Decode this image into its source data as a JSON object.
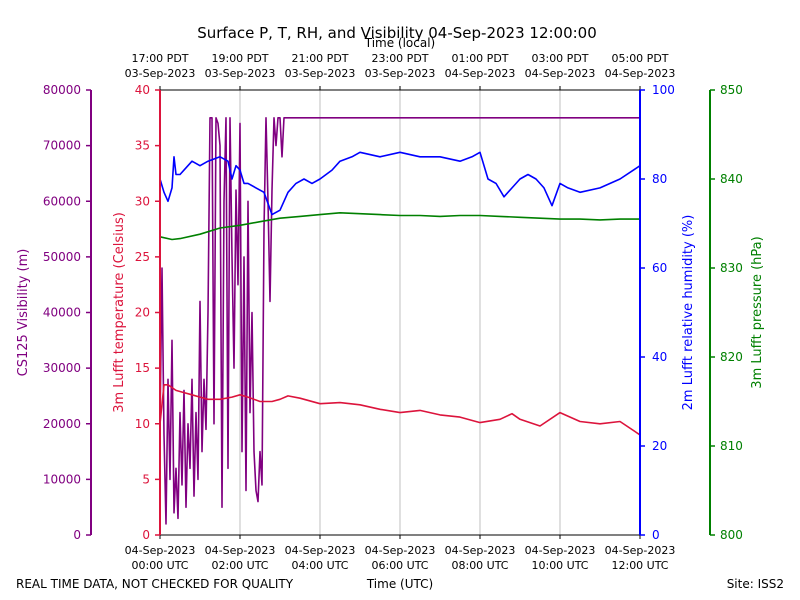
{
  "chart_data": {
    "type": "line",
    "title": "Surface P, T, RH, and Visibility 04-Sep-2023 12:00:00",
    "xlabel_bottom": "Time (UTC)",
    "xlabel_top": "Time (local)",
    "footer_left": "REAL TIME DATA, NOT CHECKED FOR QUALITY",
    "footer_right": "Site: ISS2",
    "x_range_hours_utc": [
      0,
      12
    ],
    "x_bottom_ticks": [
      {
        "h": 0,
        "l1": "04-Sep-2023",
        "l2": "00:00 UTC"
      },
      {
        "h": 2,
        "l1": "04-Sep-2023",
        "l2": "02:00 UTC"
      },
      {
        "h": 4,
        "l1": "04-Sep-2023",
        "l2": "04:00 UTC"
      },
      {
        "h": 6,
        "l1": "04-Sep-2023",
        "l2": "06:00 UTC"
      },
      {
        "h": 8,
        "l1": "04-Sep-2023",
        "l2": "08:00 UTC"
      },
      {
        "h": 10,
        "l1": "04-Sep-2023",
        "l2": "10:00 UTC"
      },
      {
        "h": 12,
        "l1": "04-Sep-2023",
        "l2": "12:00 UTC"
      }
    ],
    "x_top_ticks": [
      {
        "h": 0,
        "l1": "17:00 PDT",
        "l2": "03-Sep-2023"
      },
      {
        "h": 2,
        "l1": "19:00 PDT",
        "l2": "03-Sep-2023"
      },
      {
        "h": 4,
        "l1": "21:00 PDT",
        "l2": "03-Sep-2023"
      },
      {
        "h": 6,
        "l1": "23:00 PDT",
        "l2": "03-Sep-2023"
      },
      {
        "h": 8,
        "l1": "01:00 PDT",
        "l2": "04-Sep-2023"
      },
      {
        "h": 10,
        "l1": "03:00 PDT",
        "l2": "04-Sep-2023"
      },
      {
        "h": 12,
        "l1": "05:00 PDT",
        "l2": "04-Sep-2023"
      }
    ],
    "grid": "vertical",
    "axes": {
      "visibility": {
        "label": "CS125 Visibility (m)",
        "color": "#800080",
        "min": 0,
        "max": 80000,
        "ticks": [
          0,
          10000,
          20000,
          30000,
          40000,
          50000,
          60000,
          70000,
          80000
        ]
      },
      "temperature": {
        "label": "3m Lufft temperature (Celsius)",
        "color": "#dc143c",
        "min": 0,
        "max": 40,
        "ticks": [
          0,
          5,
          10,
          15,
          20,
          25,
          30,
          35,
          40
        ]
      },
      "humidity": {
        "label": "2m Lufft relative humidity (%)",
        "color": "#0000ff",
        "min": 0,
        "max": 100,
        "ticks": [
          0,
          20,
          40,
          60,
          80,
          100
        ]
      },
      "pressure": {
        "label": "3m Lufft pressure (hPa)",
        "color": "#008000",
        "min": 800,
        "max": 850,
        "ticks": [
          800,
          810,
          820,
          830,
          840,
          850
        ]
      }
    },
    "series": [
      {
        "key": "visibility",
        "axis": "visibility",
        "color": "#800080",
        "x": [
          0,
          0.05,
          0.1,
          0.15,
          0.2,
          0.25,
          0.3,
          0.35,
          0.4,
          0.45,
          0.5,
          0.55,
          0.6,
          0.65,
          0.7,
          0.75,
          0.8,
          0.85,
          0.9,
          0.95,
          1.0,
          1.05,
          1.1,
          1.15,
          1.2,
          1.25,
          1.3,
          1.35,
          1.4,
          1.45,
          1.5,
          1.55,
          1.6,
          1.65,
          1.7,
          1.75,
          1.8,
          1.85,
          1.9,
          1.95,
          2.0,
          2.05,
          2.1,
          2.15,
          2.2,
          2.25,
          2.3,
          2.35,
          2.4,
          2.45,
          2.5,
          2.55,
          2.6,
          2.65,
          2.7,
          2.75,
          2.8,
          2.85,
          2.9,
          2.95,
          3.0,
          3.05,
          3.1,
          3.15,
          3.2,
          3.3,
          3.4,
          3.5,
          4,
          5,
          6,
          7,
          8,
          9,
          10,
          11,
          12
        ],
        "y": [
          20000,
          48000,
          18000,
          2000,
          28000,
          10000,
          35000,
          4000,
          12000,
          3000,
          22000,
          9000,
          26000,
          5000,
          20000,
          12000,
          28000,
          7000,
          22000,
          10000,
          42000,
          15000,
          28000,
          19000,
          40000,
          75000,
          75000,
          20000,
          75000,
          74000,
          70000,
          5000,
          60000,
          75000,
          12000,
          75000,
          50000,
          30000,
          62000,
          45000,
          74000,
          15000,
          50000,
          8000,
          60000,
          22000,
          40000,
          15000,
          8000,
          6000,
          15000,
          9000,
          55000,
          75000,
          60000,
          42000,
          62000,
          75000,
          70000,
          75000,
          75000,
          68000,
          75000,
          75000,
          75000,
          75000,
          75000,
          75000,
          75000,
          75000,
          75000,
          75000,
          75000,
          75000,
          75000,
          75000,
          75000
        ]
      },
      {
        "key": "temperature",
        "axis": "temperature",
        "color": "#dc143c",
        "x": [
          0,
          0.1,
          0.2,
          0.4,
          0.6,
          0.8,
          1.0,
          1.2,
          1.5,
          1.8,
          2.0,
          2.2,
          2.5,
          2.8,
          3.0,
          3.2,
          3.5,
          4.0,
          4.5,
          5.0,
          5.5,
          6.0,
          6.5,
          7.0,
          7.5,
          8.0,
          8.5,
          8.8,
          9.0,
          9.5,
          10.0,
          10.5,
          11.0,
          11.5,
          12.0
        ],
        "y": [
          10,
          13.5,
          13.5,
          13,
          12.8,
          12.6,
          12.4,
          12.2,
          12.2,
          12.4,
          12.6,
          12.4,
          12.0,
          12.0,
          12.2,
          12.5,
          12.3,
          11.8,
          11.9,
          11.7,
          11.3,
          11.0,
          11.2,
          10.8,
          10.6,
          10.1,
          10.4,
          10.9,
          10.4,
          9.8,
          11.0,
          10.2,
          10.0,
          10.2,
          9.0
        ]
      },
      {
        "key": "humidity",
        "axis": "humidity",
        "color": "#0000ff",
        "x": [
          0,
          0.1,
          0.2,
          0.3,
          0.35,
          0.4,
          0.5,
          0.6,
          0.8,
          1.0,
          1.2,
          1.5,
          1.7,
          1.8,
          1.9,
          2.0,
          2.1,
          2.2,
          2.4,
          2.6,
          2.8,
          3.0,
          3.2,
          3.4,
          3.6,
          3.8,
          4.0,
          4.3,
          4.5,
          4.8,
          5.0,
          5.5,
          6.0,
          6.5,
          7.0,
          7.5,
          7.8,
          8.0,
          8.2,
          8.4,
          8.6,
          8.8,
          9.0,
          9.2,
          9.4,
          9.6,
          9.8,
          10.0,
          10.2,
          10.5,
          11.0,
          11.5,
          12.0
        ],
        "y": [
          80,
          77,
          75,
          78,
          85,
          81,
          81,
          82,
          84,
          83,
          84,
          85,
          84,
          80,
          83,
          82,
          79,
          79,
          78,
          77,
          72,
          73,
          77,
          79,
          80,
          79,
          80,
          82,
          84,
          85,
          86,
          85,
          86,
          85,
          85,
          84,
          85,
          86,
          80,
          79,
          76,
          78,
          80,
          81,
          80,
          78,
          74,
          79,
          78,
          77,
          78,
          80,
          83
        ]
      },
      {
        "key": "pressure",
        "axis": "pressure",
        "color": "#008000",
        "x": [
          0,
          0.3,
          0.5,
          1.0,
          1.5,
          2.0,
          2.5,
          3.0,
          3.5,
          4.0,
          4.5,
          5.0,
          5.5,
          6.0,
          6.5,
          7.0,
          7.5,
          8.0,
          8.5,
          9.0,
          9.5,
          10.0,
          10.5,
          11.0,
          11.5,
          12.0
        ],
        "y": [
          833.5,
          833.2,
          833.3,
          833.8,
          834.5,
          834.8,
          835.2,
          835.6,
          835.8,
          836.0,
          836.2,
          836.1,
          836.0,
          835.9,
          835.9,
          835.8,
          835.9,
          835.9,
          835.8,
          835.7,
          835.6,
          835.5,
          835.5,
          835.4,
          835.5,
          835.5
        ]
      }
    ]
  }
}
